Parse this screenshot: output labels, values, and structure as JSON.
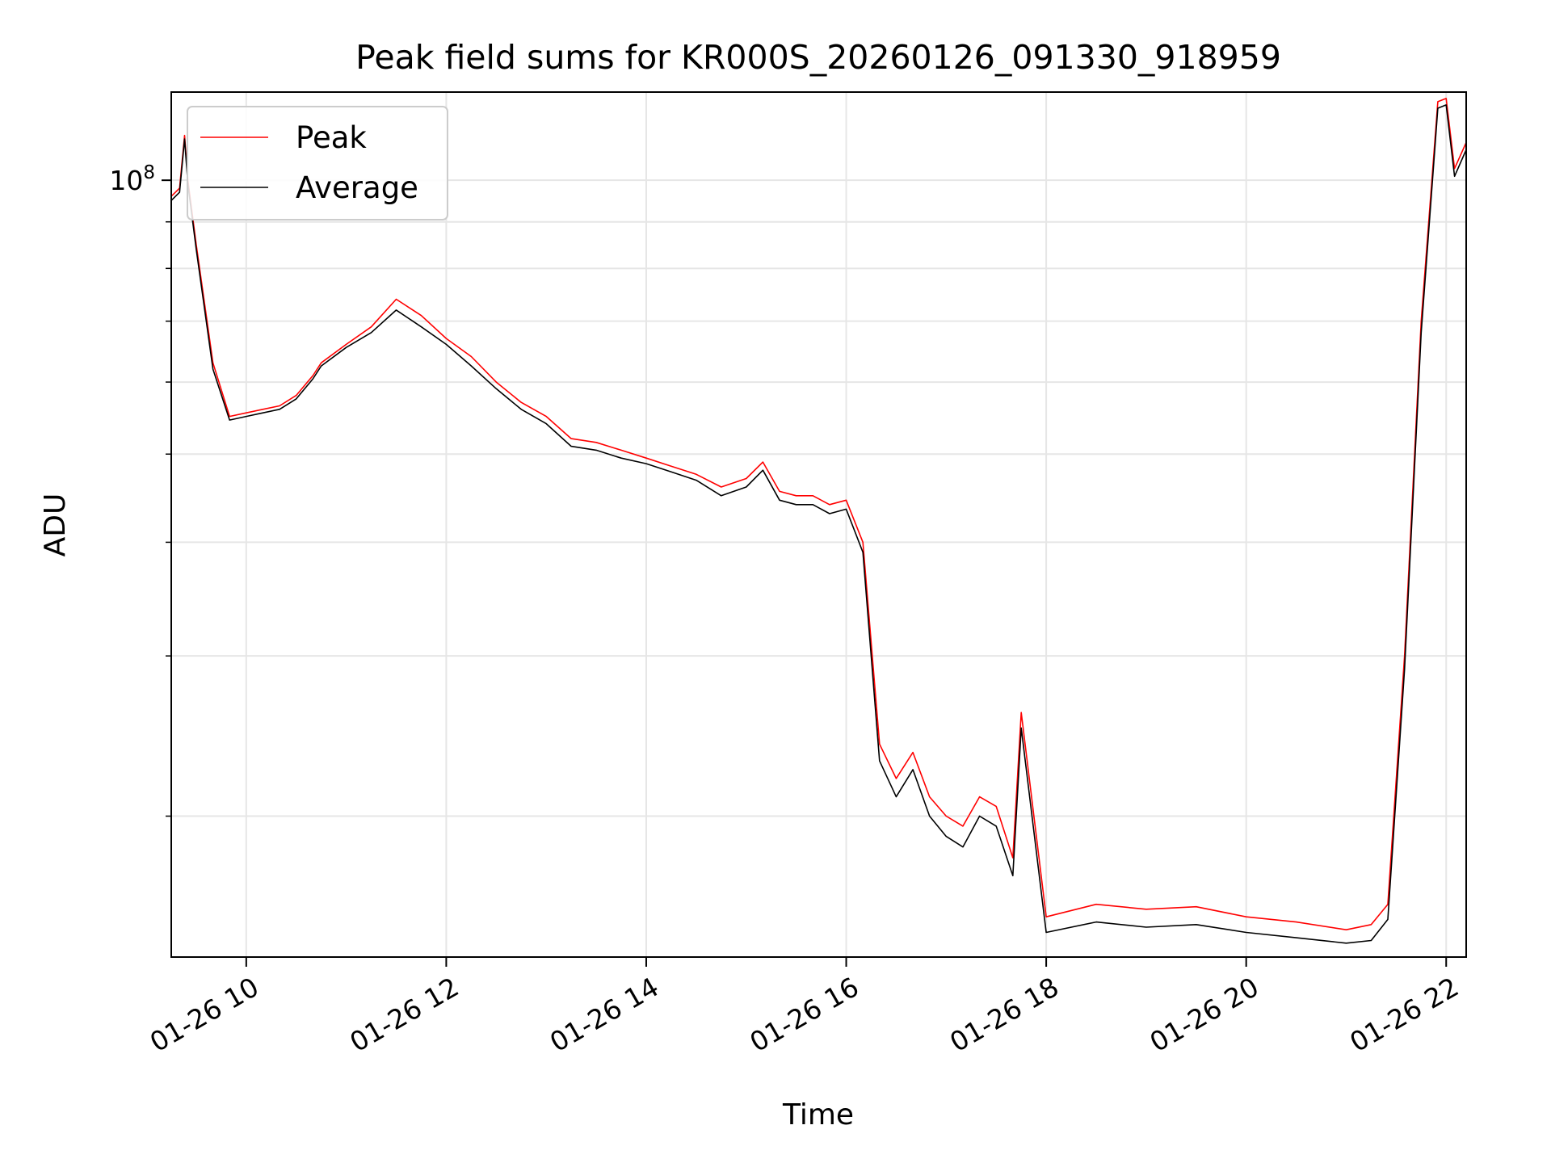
{
  "chart_data": {
    "type": "line",
    "title": "Peak field sums for KR000S_20260126_091330_918959",
    "xlabel": "Time",
    "ylabel": "ADU",
    "x_scale": "time",
    "y_scale": "log",
    "xlim": [
      "2026-01-26 09:15",
      "2026-01-26 22:12"
    ],
    "ylim": [
      14000000,
      125000000
    ],
    "x_ticks": [
      {
        "value": "2026-01-26 10:00",
        "label": "01-26 10"
      },
      {
        "value": "2026-01-26 12:00",
        "label": "01-26 12"
      },
      {
        "value": "2026-01-26 14:00",
        "label": "01-26 14"
      },
      {
        "value": "2026-01-26 16:00",
        "label": "01-26 16"
      },
      {
        "value": "2026-01-26 18:00",
        "label": "01-26 18"
      },
      {
        "value": "2026-01-26 20:00",
        "label": "01-26 20"
      },
      {
        "value": "2026-01-26 22:00",
        "label": "01-26 22"
      }
    ],
    "y_major_ticks": [
      {
        "value": 100000000,
        "base": "10",
        "exp": "8"
      }
    ],
    "y_minor_ticks": [
      20000000,
      30000000,
      40000000,
      50000000,
      60000000,
      70000000,
      80000000,
      90000000
    ],
    "grid": true,
    "legend_position": "upper-left",
    "series": [
      {
        "name": "Peak",
        "color": "#ff0000",
        "x": [
          "2026-01-26 09:15",
          "2026-01-26 09:20",
          "2026-01-26 09:23",
          "2026-01-26 09:25",
          "2026-01-26 09:30",
          "2026-01-26 09:40",
          "2026-01-26 09:50",
          "2026-01-26 10:00",
          "2026-01-26 10:10",
          "2026-01-26 10:20",
          "2026-01-26 10:30",
          "2026-01-26 10:40",
          "2026-01-26 10:45",
          "2026-01-26 11:00",
          "2026-01-26 11:15",
          "2026-01-26 11:30",
          "2026-01-26 11:45",
          "2026-01-26 12:00",
          "2026-01-26 12:15",
          "2026-01-26 12:30",
          "2026-01-26 12:45",
          "2026-01-26 13:00",
          "2026-01-26 13:15",
          "2026-01-26 13:30",
          "2026-01-26 13:45",
          "2026-01-26 14:00",
          "2026-01-26 14:15",
          "2026-01-26 14:30",
          "2026-01-26 14:45",
          "2026-01-26 15:00",
          "2026-01-26 15:10",
          "2026-01-26 15:20",
          "2026-01-26 15:30",
          "2026-01-26 15:40",
          "2026-01-26 15:50",
          "2026-01-26 16:00",
          "2026-01-26 16:10",
          "2026-01-26 16:20",
          "2026-01-26 16:30",
          "2026-01-26 16:40",
          "2026-01-26 16:50",
          "2026-01-26 17:00",
          "2026-01-26 17:10",
          "2026-01-26 17:20",
          "2026-01-26 17:30",
          "2026-01-26 17:40",
          "2026-01-26 17:45",
          "2026-01-26 18:00",
          "2026-01-26 18:30",
          "2026-01-26 19:00",
          "2026-01-26 19:30",
          "2026-01-26 20:00",
          "2026-01-26 20:30",
          "2026-01-26 21:00",
          "2026-01-26 21:15",
          "2026-01-26 21:25",
          "2026-01-26 21:35",
          "2026-01-26 21:45",
          "2026-01-26 21:55",
          "2026-01-26 22:00",
          "2026-01-26 22:05",
          "2026-01-26 22:12"
        ],
        "y": [
          96000000,
          98000000,
          112000000,
          100000000,
          85000000,
          63000000,
          55000000,
          55500000,
          56000000,
          56500000,
          58000000,
          61000000,
          63000000,
          66000000,
          69000000,
          74000000,
          71000000,
          67000000,
          64000000,
          60000000,
          57000000,
          55000000,
          52000000,
          51500000,
          50500000,
          49500000,
          48500000,
          47500000,
          46000000,
          47000000,
          49000000,
          45500000,
          45000000,
          45000000,
          44000000,
          44500000,
          40000000,
          24000000,
          22000000,
          23500000,
          21000000,
          20000000,
          19500000,
          21000000,
          20500000,
          18000000,
          26000000,
          15500000,
          16000000,
          15800000,
          15900000,
          15500000,
          15300000,
          15000000,
          15200000,
          16000000,
          30000000,
          70000000,
          122000000,
          123000000,
          103000000,
          110000000
        ]
      },
      {
        "name": "Average",
        "color": "#000000",
        "x": [
          "2026-01-26 09:15",
          "2026-01-26 09:20",
          "2026-01-26 09:23",
          "2026-01-26 09:25",
          "2026-01-26 09:30",
          "2026-01-26 09:40",
          "2026-01-26 09:50",
          "2026-01-26 10:00",
          "2026-01-26 10:10",
          "2026-01-26 10:20",
          "2026-01-26 10:30",
          "2026-01-26 10:40",
          "2026-01-26 10:45",
          "2026-01-26 11:00",
          "2026-01-26 11:15",
          "2026-01-26 11:30",
          "2026-01-26 11:45",
          "2026-01-26 12:00",
          "2026-01-26 12:15",
          "2026-01-26 12:30",
          "2026-01-26 12:45",
          "2026-01-26 13:00",
          "2026-01-26 13:15",
          "2026-01-26 13:30",
          "2026-01-26 13:45",
          "2026-01-26 14:00",
          "2026-01-26 14:15",
          "2026-01-26 14:30",
          "2026-01-26 14:45",
          "2026-01-26 15:00",
          "2026-01-26 15:10",
          "2026-01-26 15:20",
          "2026-01-26 15:30",
          "2026-01-26 15:40",
          "2026-01-26 15:50",
          "2026-01-26 16:00",
          "2026-01-26 16:10",
          "2026-01-26 16:20",
          "2026-01-26 16:30",
          "2026-01-26 16:40",
          "2026-01-26 16:50",
          "2026-01-26 17:00",
          "2026-01-26 17:10",
          "2026-01-26 17:20",
          "2026-01-26 17:30",
          "2026-01-26 17:40",
          "2026-01-26 17:45",
          "2026-01-26 18:00",
          "2026-01-26 18:30",
          "2026-01-26 19:00",
          "2026-01-26 19:30",
          "2026-01-26 20:00",
          "2026-01-26 20:30",
          "2026-01-26 21:00",
          "2026-01-26 21:15",
          "2026-01-26 21:25",
          "2026-01-26 21:35",
          "2026-01-26 21:45",
          "2026-01-26 21:55",
          "2026-01-26 22:00",
          "2026-01-26 22:05",
          "2026-01-26 22:12"
        ],
        "y": [
          95000000,
          97000000,
          111000000,
          99000000,
          84000000,
          62000000,
          54500000,
          55000000,
          55500000,
          56000000,
          57500000,
          60500000,
          62500000,
          65500000,
          68000000,
          72000000,
          69000000,
          66000000,
          62500000,
          59000000,
          56000000,
          54000000,
          51000000,
          50500000,
          49500000,
          48800000,
          47800000,
          46800000,
          45000000,
          46000000,
          48000000,
          44500000,
          44000000,
          44000000,
          43000000,
          43500000,
          39000000,
          23000000,
          21000000,
          22500000,
          20000000,
          19000000,
          18500000,
          20000000,
          19500000,
          17200000,
          25000000,
          14900000,
          15300000,
          15100000,
          15200000,
          14900000,
          14700000,
          14500000,
          14600000,
          15400000,
          29000000,
          68000000,
          120000000,
          121000000,
          101000000,
          108000000
        ]
      }
    ]
  }
}
